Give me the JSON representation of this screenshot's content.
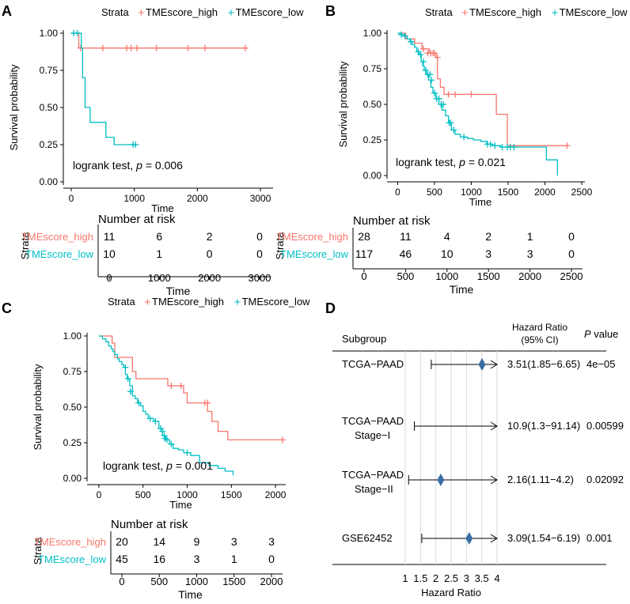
{
  "chart_data": [
    {
      "panel": "A",
      "type": "line",
      "subtype": "kaplan-meier",
      "legend": {
        "title": "Strata",
        "items": [
          {
            "label": "TMEscore_high",
            "color": "#f8766d"
          },
          {
            "label": "TMEscore_low",
            "color": "#00bfc4"
          }
        ]
      },
      "ylabel": "Survival probability",
      "xlabel": "Time",
      "xlim": [
        -50,
        3150
      ],
      "ylim": [
        0,
        1
      ],
      "x_ticks": [
        0,
        1000,
        2000,
        3000
      ],
      "x_tick_labels": [
        "0",
        "1000",
        "2000",
        "3000"
      ],
      "y_ticks": [
        0,
        0.25,
        0.5,
        0.75,
        1
      ],
      "y_tick_labels": [
        "0.00",
        "0.25",
        "0.50",
        "0.75",
        "1.00"
      ],
      "series": [
        {
          "name": "TMEscore_high",
          "color": "#f8766d",
          "steps": [
            [
              0,
              1.0
            ],
            [
              120,
              0.9
            ],
            [
              2760,
              0.9
            ]
          ],
          "censored": [
            [
              150,
              0.9
            ],
            [
              500,
              0.9
            ],
            [
              880,
              0.9
            ],
            [
              950,
              0.9
            ],
            [
              1040,
              0.9
            ],
            [
              1350,
              0.9
            ],
            [
              1850,
              0.9
            ],
            [
              2120,
              0.9
            ],
            [
              2760,
              0.9
            ]
          ]
        },
        {
          "name": "TMEscore_low",
          "color": "#00bfc4",
          "steps": [
            [
              0,
              1.0
            ],
            [
              160,
              0.9
            ],
            [
              180,
              0.7
            ],
            [
              220,
              0.5
            ],
            [
              300,
              0.4
            ],
            [
              550,
              0.3
            ],
            [
              680,
              0.25
            ],
            [
              1020,
              0.25
            ]
          ],
          "censored": [
            [
              40,
              1.0
            ],
            [
              100,
              1.0
            ],
            [
              980,
              0.25
            ],
            [
              1020,
              0.25
            ]
          ]
        }
      ],
      "annotation": {
        "prefix": "logrank test, ",
        "italic": "p",
        "suffix": " = 0.006"
      },
      "risk_table": {
        "title": "Number at risk",
        "strata_label": "Strata",
        "xlabel": "Time",
        "x_ticks": [
          0,
          1000,
          2000,
          3000
        ],
        "x_tick_labels": [
          "0",
          "1000",
          "2000",
          "3000"
        ],
        "rows": [
          {
            "label": "TMEscore_high",
            "color": "#f8766d",
            "values": [
              "11",
              "6",
              "2",
              "0"
            ]
          },
          {
            "label": "TMEscore_low",
            "color": "#00bfc4",
            "values": [
              "10",
              "1",
              "0",
              "0"
            ]
          }
        ]
      }
    },
    {
      "panel": "B",
      "type": "line",
      "subtype": "kaplan-meier",
      "legend": {
        "title": "Strata",
        "items": [
          {
            "label": "TMEscore_high",
            "color": "#f8766d"
          },
          {
            "label": "TMEscore_low",
            "color": "#00bfc4"
          }
        ]
      },
      "ylabel": "Survival probability",
      "xlabel": "Time",
      "xlim": [
        -80,
        2500
      ],
      "ylim": [
        0,
        1
      ],
      "x_ticks": [
        0,
        500,
        1000,
        1500,
        2000,
        2500
      ],
      "x_tick_labels": [
        "0",
        "500",
        "1000",
        "1500",
        "2000",
        "2500"
      ],
      "y_ticks": [
        0,
        0.25,
        0.5,
        0.75,
        1
      ],
      "y_tick_labels": [
        "0.00",
        "0.25",
        "0.50",
        "0.75",
        "1.00"
      ],
      "series": [
        {
          "name": "TMEscore_high",
          "color": "#f8766d",
          "steps": [
            [
              0,
              1.0
            ],
            [
              110,
              0.96
            ],
            [
              230,
              0.93
            ],
            [
              330,
              0.89
            ],
            [
              430,
              0.86
            ],
            [
              520,
              0.83
            ],
            [
              540,
              0.68
            ],
            [
              580,
              0.62
            ],
            [
              630,
              0.57
            ],
            [
              1340,
              0.43
            ],
            [
              1490,
              0.21
            ],
            [
              2300,
              0.21
            ]
          ],
          "censored": [
            [
              350,
              0.89
            ],
            [
              410,
              0.86
            ],
            [
              450,
              0.86
            ],
            [
              480,
              0.86
            ],
            [
              500,
              0.86
            ],
            [
              540,
              0.83
            ],
            [
              690,
              0.57
            ],
            [
              780,
              0.57
            ],
            [
              1000,
              0.57
            ],
            [
              2300,
              0.21
            ]
          ]
        },
        {
          "name": "TMEscore_low",
          "color": "#00bfc4",
          "steps": [
            [
              0,
              1.0
            ],
            [
              40,
              0.99
            ],
            [
              90,
              0.98
            ],
            [
              130,
              0.96
            ],
            [
              170,
              0.94
            ],
            [
              200,
              0.92
            ],
            [
              230,
              0.9
            ],
            [
              260,
              0.87
            ],
            [
              290,
              0.85
            ],
            [
              320,
              0.8
            ],
            [
              340,
              0.77
            ],
            [
              360,
              0.74
            ],
            [
              390,
              0.71
            ],
            [
              420,
              0.67
            ],
            [
              450,
              0.62
            ],
            [
              480,
              0.58
            ],
            [
              520,
              0.54
            ],
            [
              560,
              0.5
            ],
            [
              600,
              0.46
            ],
            [
              650,
              0.42
            ],
            [
              690,
              0.37
            ],
            [
              730,
              0.32
            ],
            [
              780,
              0.29
            ],
            [
              850,
              0.27
            ],
            [
              950,
              0.26
            ],
            [
              1030,
              0.25
            ],
            [
              1130,
              0.24
            ],
            [
              1210,
              0.22
            ],
            [
              1280,
              0.21
            ],
            [
              1400,
              0.2
            ],
            [
              2020,
              0.11
            ],
            [
              2170,
              0.0
            ]
          ],
          "censored": [
            [
              50,
              0.99
            ],
            [
              100,
              0.98
            ],
            [
              180,
              0.94
            ],
            [
              280,
              0.87
            ],
            [
              310,
              0.85
            ],
            [
              350,
              0.8
            ],
            [
              380,
              0.74
            ],
            [
              410,
              0.71
            ],
            [
              440,
              0.71
            ],
            [
              460,
              0.67
            ],
            [
              500,
              0.58
            ],
            [
              530,
              0.54
            ],
            [
              560,
              0.54
            ],
            [
              590,
              0.5
            ],
            [
              620,
              0.5
            ],
            [
              700,
              0.37
            ],
            [
              720,
              0.37
            ],
            [
              760,
              0.32
            ],
            [
              900,
              0.27
            ],
            [
              1220,
              0.22
            ],
            [
              1260,
              0.22
            ],
            [
              1320,
              0.21
            ],
            [
              1420,
              0.2
            ],
            [
              1490,
              0.2
            ],
            [
              1530,
              0.2
            ],
            [
              1580,
              0.2
            ]
          ]
        }
      ],
      "annotation": {
        "prefix": "logrank test, ",
        "italic": "p",
        "suffix": " = 0.021"
      },
      "risk_table": {
        "title": "Number at risk",
        "strata_label": "Strata",
        "xlabel": "Time",
        "x_ticks": [
          0,
          500,
          1000,
          1500,
          2000,
          2500
        ],
        "x_tick_labels": [
          "0",
          "500",
          "1000",
          "1500",
          "2000",
          "2500"
        ],
        "rows": [
          {
            "label": "TMEscore_high",
            "color": "#f8766d",
            "values": [
              "28",
              "11",
              "4",
              "2",
              "1",
              "0"
            ]
          },
          {
            "label": "TMEscore_low",
            "color": "#00bfc4",
            "values": [
              "117",
              "46",
              "10",
              "3",
              "3",
              "0"
            ]
          }
        ]
      }
    },
    {
      "panel": "C",
      "type": "line",
      "subtype": "kaplan-meier",
      "legend": {
        "title": "Strata",
        "items": [
          {
            "label": "TMEscore_high",
            "color": "#f8766d"
          },
          {
            "label": "TMEscore_low",
            "color": "#00bfc4"
          }
        ]
      },
      "ylabel": "Survival probability",
      "xlabel": "Time",
      "xlim": [
        -80,
        2080
      ],
      "ylim": [
        0,
        1
      ],
      "x_ticks": [
        0,
        500,
        1000,
        1500,
        2000
      ],
      "x_tick_labels": [
        "0",
        "500",
        "1000",
        "1500",
        "2000"
      ],
      "y_ticks": [
        0,
        0.25,
        0.5,
        0.75,
        1
      ],
      "y_tick_labels": [
        "0.00",
        "0.25",
        "0.50",
        "0.75",
        "1.00"
      ],
      "series": [
        {
          "name": "TMEscore_high",
          "color": "#f8766d",
          "steps": [
            [
              0,
              1.0
            ],
            [
              150,
              0.95
            ],
            [
              180,
              0.85
            ],
            [
              380,
              0.75
            ],
            [
              420,
              0.7
            ],
            [
              780,
              0.65
            ],
            [
              960,
              0.6
            ],
            [
              1000,
              0.53
            ],
            [
              1230,
              0.47
            ],
            [
              1280,
              0.4
            ],
            [
              1350,
              0.33
            ],
            [
              1460,
              0.27
            ],
            [
              2080,
              0.27
            ]
          ],
          "censored": [
            [
              820,
              0.65
            ],
            [
              930,
              0.65
            ],
            [
              1200,
              0.53
            ],
            [
              1230,
              0.53
            ],
            [
              2080,
              0.27
            ]
          ]
        },
        {
          "name": "TMEscore_low",
          "color": "#00bfc4",
          "steps": [
            [
              0,
              1.0
            ],
            [
              40,
              0.98
            ],
            [
              80,
              0.96
            ],
            [
              110,
              0.93
            ],
            [
              140,
              0.91
            ],
            [
              160,
              0.89
            ],
            [
              180,
              0.87
            ],
            [
              210,
              0.84
            ],
            [
              230,
              0.82
            ],
            [
              260,
              0.8
            ],
            [
              280,
              0.78
            ],
            [
              300,
              0.73
            ],
            [
              320,
              0.7
            ],
            [
              350,
              0.65
            ],
            [
              380,
              0.58
            ],
            [
              410,
              0.56
            ],
            [
              440,
              0.53
            ],
            [
              470,
              0.51
            ],
            [
              500,
              0.47
            ],
            [
              530,
              0.45
            ],
            [
              560,
              0.42
            ],
            [
              620,
              0.4
            ],
            [
              680,
              0.35
            ],
            [
              720,
              0.3
            ],
            [
              760,
              0.27
            ],
            [
              800,
              0.24
            ],
            [
              840,
              0.21
            ],
            [
              900,
              0.2
            ],
            [
              960,
              0.18
            ],
            [
              1040,
              0.16
            ],
            [
              1140,
              0.11
            ],
            [
              1250,
              0.09
            ],
            [
              1350,
              0.07
            ],
            [
              1430,
              0.05
            ],
            [
              1520,
              0.02
            ]
          ],
          "censored": [
            [
              300,
              0.78
            ],
            [
              330,
              0.7
            ],
            [
              360,
              0.61
            ],
            [
              450,
              0.53
            ],
            [
              580,
              0.42
            ],
            [
              640,
              0.4
            ],
            [
              700,
              0.35
            ],
            [
              720,
              0.33
            ],
            [
              740,
              0.3
            ],
            [
              750,
              0.28
            ],
            [
              770,
              0.27
            ],
            [
              820,
              0.24
            ],
            [
              1000,
              0.18
            ]
          ]
        }
      ],
      "annotation": {
        "prefix": "logrank test, ",
        "italic": "p",
        "suffix": " = 0.001"
      },
      "risk_table": {
        "title": "Number at risk",
        "strata_label": "Strata",
        "xlabel": "Time",
        "x_ticks": [
          0,
          500,
          1000,
          1500,
          2000
        ],
        "x_tick_labels": [
          "0",
          "500",
          "1000",
          "1500",
          "2000"
        ],
        "rows": [
          {
            "label": "TMEscore_high",
            "color": "#f8766d",
            "values": [
              "20",
              "14",
              "9",
              "3",
              "3"
            ]
          },
          {
            "label": "TMEscore_low",
            "color": "#00bfc4",
            "values": [
              "45",
              "16",
              "3",
              "1",
              "0"
            ]
          }
        ]
      }
    },
    {
      "panel": "D",
      "type": "forest",
      "xlabel": "Hazard Ratio",
      "xlim": [
        1,
        4
      ],
      "x_ticks": [
        1,
        1.5,
        2,
        2.5,
        3,
        3.5,
        4
      ],
      "x_tick_labels": [
        "1",
        "1.5",
        "2",
        "2.5",
        "3",
        "3.5",
        "4"
      ],
      "marker_color": "#3a6fa3",
      "headers": {
        "subgroup": "Subgroup",
        "hr_line1": "Hazard Ratio",
        "hr_line2": "(95% CI)",
        "p_italic": "P",
        "p_suffix": " value"
      },
      "rows": [
        {
          "label_lines": [
            "TCGA−PAAD"
          ],
          "hr": 3.51,
          "ci_low": 1.85,
          "ci_high": 6.65,
          "arrow_right": true,
          "hr_text": "3.51(1.85−6.65)",
          "p_text": "4e−05"
        },
        {
          "label_lines": [
            "TCGA−PAAD",
            "Stage−I"
          ],
          "hr": 10.9,
          "ci_low": 1.3,
          "ci_high": 91.14,
          "arrow_right": true,
          "hr_text": "10.9(1.3−91.14)",
          "p_text": "0.00599"
        },
        {
          "label_lines": [
            "TCGA−PAAD",
            "Stage−II"
          ],
          "hr": 2.16,
          "ci_low": 1.11,
          "ci_high": 4.2,
          "arrow_right": true,
          "hr_text": "2.16(1.11−4.2)",
          "p_text": "0.02092"
        },
        {
          "label_lines": [
            "GSE62452"
          ],
          "hr": 3.09,
          "ci_low": 1.54,
          "ci_high": 6.19,
          "arrow_right": true,
          "hr_text": "3.09(1.54−6.19)",
          "p_text": "0.001"
        }
      ]
    }
  ]
}
